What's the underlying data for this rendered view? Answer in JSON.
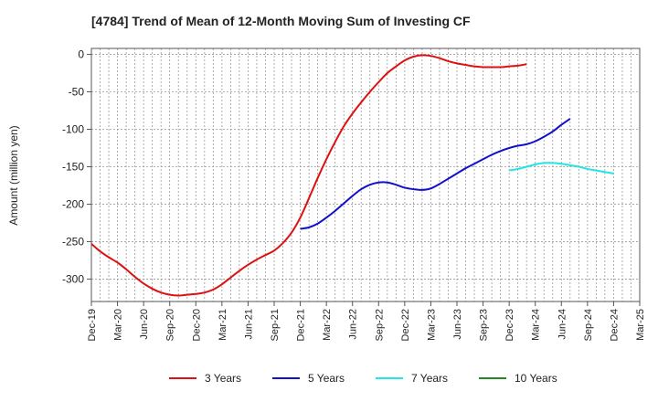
{
  "chart_data": {
    "type": "line",
    "title": "[4784]  Trend of Mean of 12-Month Moving Sum of Investing CF",
    "xlabel": "",
    "ylabel": "Amount (million yen)",
    "ylim": [
      -330,
      8
    ],
    "yticks": [
      0,
      -50,
      -100,
      -150,
      -200,
      -250,
      -300
    ],
    "xticks": [
      "Dec-19",
      "Mar-20",
      "Jun-20",
      "Sep-20",
      "Dec-20",
      "Mar-21",
      "Jun-21",
      "Sep-21",
      "Dec-21",
      "Mar-22",
      "Jun-22",
      "Sep-22",
      "Dec-22",
      "Mar-23",
      "Jun-23",
      "Sep-23",
      "Dec-23",
      "Mar-24",
      "Jun-24",
      "Sep-24",
      "Dec-24",
      "Mar-25"
    ],
    "grid": true,
    "legend_position": "bottom",
    "series": [
      {
        "name": "3 Years",
        "color": "#dd1111",
        "start_index": 0,
        "values": [
          -253,
          -263,
          -271,
          -278,
          -287,
          -297,
          -306,
          -313,
          -318,
          -321,
          -322,
          -321,
          -320,
          -318,
          -314,
          -307,
          -298,
          -289,
          -281,
          -274,
          -268,
          -262,
          -252,
          -238,
          -218,
          -192,
          -165,
          -140,
          -117,
          -96,
          -79,
          -64,
          -50,
          -37,
          -25,
          -16,
          -8,
          -3,
          -1,
          -2,
          -5,
          -9,
          -12,
          -14,
          -16,
          -17,
          -17,
          -17,
          -16,
          -15,
          -13
        ]
      },
      {
        "name": "5 Years",
        "color": "#1111cc",
        "start_index": 24,
        "values": [
          -233,
          -231,
          -226,
          -218,
          -209,
          -199,
          -189,
          -180,
          -174,
          -171,
          -171,
          -174,
          -178,
          -180,
          -181,
          -179,
          -173,
          -166,
          -159,
          -152,
          -146,
          -140,
          -134,
          -129,
          -125,
          -122,
          -120,
          -116,
          -110,
          -103,
          -94,
          -86
        ]
      },
      {
        "name": "7 Years",
        "color": "#22e5e5",
        "start_index": 48,
        "values": [
          -155,
          -153,
          -150,
          -147,
          -145,
          -145,
          -146,
          -148,
          -150,
          -153,
          -155,
          -157,
          -159
        ]
      },
      {
        "name": "10 Years",
        "color": "#228822",
        "start_index": 0,
        "values": []
      }
    ]
  }
}
